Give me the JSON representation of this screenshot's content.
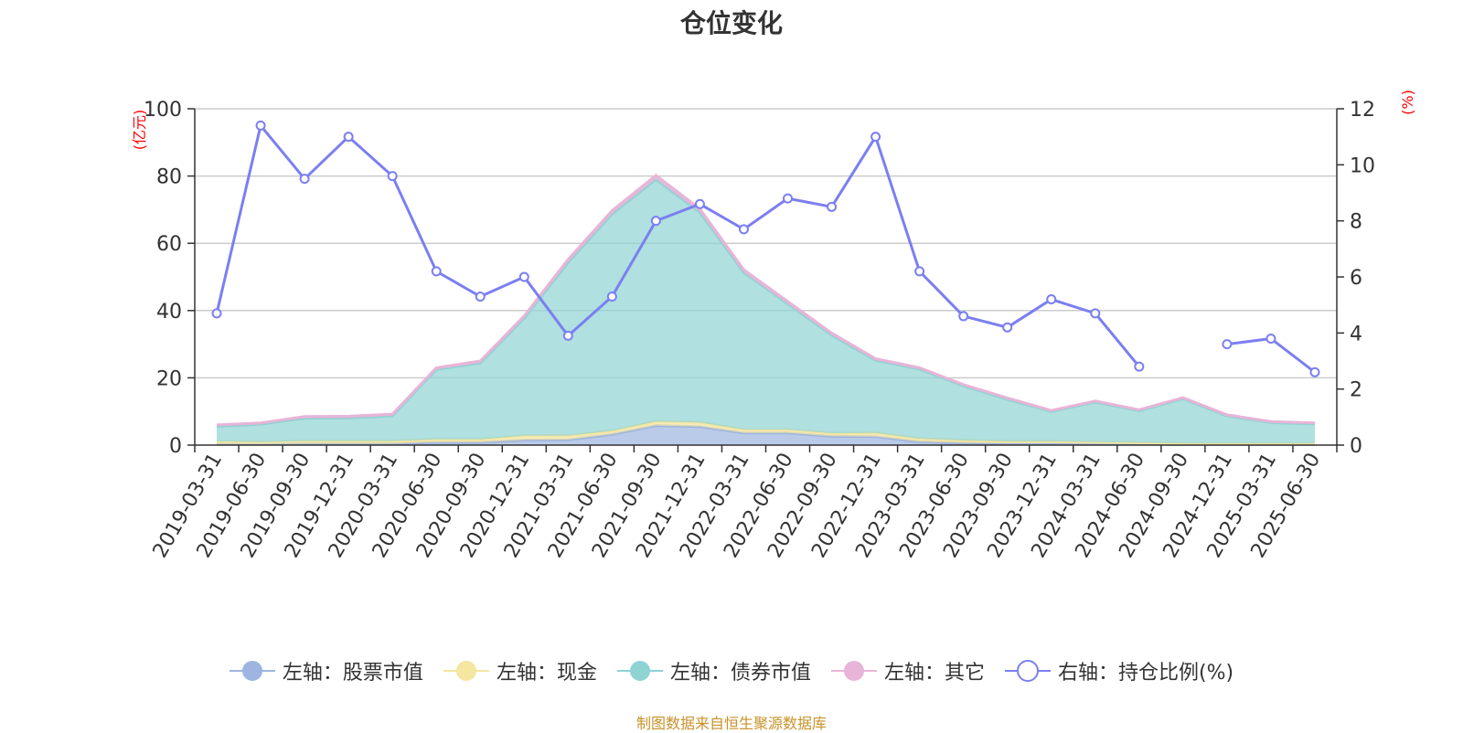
{
  "title": "仓位变化",
  "footer": "制图数据来自恒生聚源数据库",
  "chart_data": {
    "type": "area",
    "categories": [
      "2019-03-31",
      "2019-06-30",
      "2019-09-30",
      "2019-12-31",
      "2020-03-31",
      "2020-06-30",
      "2020-09-30",
      "2020-12-31",
      "2021-03-31",
      "2021-06-30",
      "2021-09-30",
      "2021-12-31",
      "2022-03-31",
      "2022-06-30",
      "2022-09-30",
      "2022-12-31",
      "2023-03-31",
      "2023-06-30",
      "2023-09-30",
      "2023-12-31",
      "2024-03-31",
      "2024-06-30",
      "2024-09-30",
      "2024-12-31",
      "2025-03-31",
      "2025-06-30"
    ],
    "left_axis": {
      "unit": "(亿元)",
      "ylim": [
        0,
        100
      ],
      "ticks": [
        0,
        20,
        40,
        60,
        80,
        100
      ]
    },
    "right_axis": {
      "unit": "(%)",
      "ylim": [
        0,
        12
      ],
      "ticks": [
        0,
        2,
        4,
        6,
        8,
        10,
        12
      ]
    },
    "grid": true,
    "legend_position": "bottom",
    "series": [
      {
        "name": "左轴：股票市值",
        "axis": "left",
        "kind": "area",
        "color": "#9db5e0",
        "values": [
          0.3,
          0.3,
          0.4,
          0.4,
          0.4,
          0.8,
          0.8,
          1.5,
          1.6,
          3.2,
          5.8,
          5.5,
          3.6,
          3.6,
          2.6,
          2.5,
          1.0,
          0.6,
          0.5,
          0.5,
          0.4,
          0.3,
          0.2,
          0.2,
          0.2,
          0.2
        ]
      },
      {
        "name": "左轴：现金",
        "axis": "left",
        "kind": "area",
        "color": "#f5e6a0",
        "values": [
          0.8,
          0.6,
          0.8,
          0.8,
          0.8,
          0.9,
          0.9,
          1.3,
          1.2,
          1.0,
          1.2,
          1.2,
          1.0,
          1.0,
          0.9,
          1.1,
          0.9,
          0.8,
          0.6,
          0.6,
          0.5,
          0.4,
          0.3,
          0.3,
          0.3,
          0.3
        ]
      },
      {
        "name": "左轴：债券市值",
        "axis": "left",
        "kind": "area",
        "color": "#8fd3d3",
        "values": [
          4.5,
          5.3,
          6.8,
          6.9,
          7.5,
          20.8,
          22.7,
          34.9,
          51.5,
          64.5,
          72.0,
          62.5,
          46.7,
          37.4,
          29.2,
          21.6,
          20.7,
          16.2,
          12.5,
          8.9,
          11.9,
          9.5,
          13.3,
          8.2,
          6.2,
          5.8
        ]
      },
      {
        "name": "左轴：其它",
        "axis": "left",
        "kind": "area",
        "color": "#e8b4d8",
        "values": [
          0.4,
          0.4,
          0.5,
          0.5,
          0.5,
          0.5,
          0.6,
          0.7,
          0.9,
          1.0,
          1.2,
          1.0,
          0.8,
          0.7,
          0.6,
          0.5,
          0.4,
          0.4,
          0.4,
          0.3,
          0.3,
          0.3,
          0.3,
          0.3,
          0.3,
          0.3
        ]
      },
      {
        "name": "右轴：持仓比例(%)",
        "axis": "right",
        "kind": "line",
        "color": "#7b7ff0",
        "values": [
          4.7,
          11.4,
          9.5,
          11.0,
          9.6,
          6.2,
          5.3,
          6.0,
          3.9,
          5.3,
          8.0,
          8.6,
          7.7,
          8.8,
          8.5,
          11.0,
          6.2,
          4.6,
          4.2,
          5.2,
          4.7,
          2.8,
          null,
          3.6,
          3.8,
          2.6
        ]
      }
    ]
  }
}
